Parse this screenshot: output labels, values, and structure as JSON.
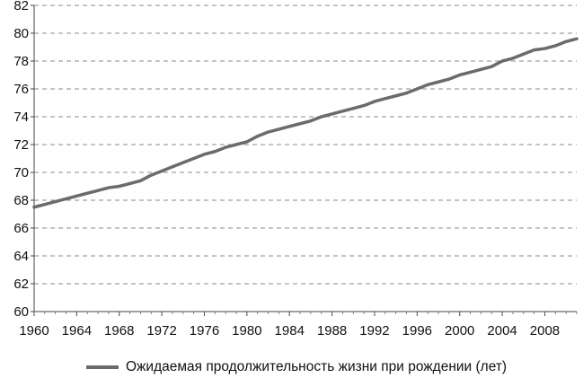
{
  "chart_data": {
    "type": "line",
    "x_ticks": [
      "1960",
      "1964",
      "1968",
      "1972",
      "1976",
      "1980",
      "1984",
      "1988",
      "1992",
      "1996",
      "2000",
      "2004",
      "2008"
    ],
    "y_ticks": [
      "60",
      "62",
      "64",
      "66",
      "68",
      "70",
      "72",
      "74",
      "76",
      "78",
      "80",
      "82"
    ],
    "xlim": [
      1960,
      2011
    ],
    "ylim": [
      60,
      82
    ],
    "grid": "horizontal-dashed",
    "legend_position": "bottom",
    "series": [
      {
        "name": "Ожидаемая продолжительность жизни при рождении (лет)",
        "color": "#6b6b6b",
        "x": [
          1960,
          1961,
          1962,
          1963,
          1964,
          1965,
          1966,
          1967,
          1968,
          1969,
          1970,
          1971,
          1972,
          1973,
          1974,
          1975,
          1976,
          1977,
          1978,
          1979,
          1980,
          1981,
          1982,
          1983,
          1984,
          1985,
          1986,
          1987,
          1988,
          1989,
          1990,
          1991,
          1992,
          1993,
          1994,
          1995,
          1996,
          1997,
          1998,
          1999,
          2000,
          2001,
          2002,
          2003,
          2004,
          2005,
          2006,
          2007,
          2008,
          2009,
          2010,
          2011
        ],
        "y": [
          67.5,
          67.7,
          67.9,
          68.1,
          68.3,
          68.5,
          68.7,
          68.9,
          69.0,
          69.2,
          69.4,
          69.8,
          70.1,
          70.4,
          70.7,
          71.0,
          71.3,
          71.5,
          71.8,
          72.0,
          72.2,
          72.6,
          72.9,
          73.1,
          73.3,
          73.5,
          73.7,
          74.0,
          74.2,
          74.4,
          74.6,
          74.8,
          75.1,
          75.3,
          75.5,
          75.7,
          76.0,
          76.3,
          76.5,
          76.7,
          77.0,
          77.2,
          77.4,
          77.6,
          78.0,
          78.2,
          78.5,
          78.8,
          78.9,
          79.1,
          79.4,
          79.6
        ]
      }
    ]
  }
}
